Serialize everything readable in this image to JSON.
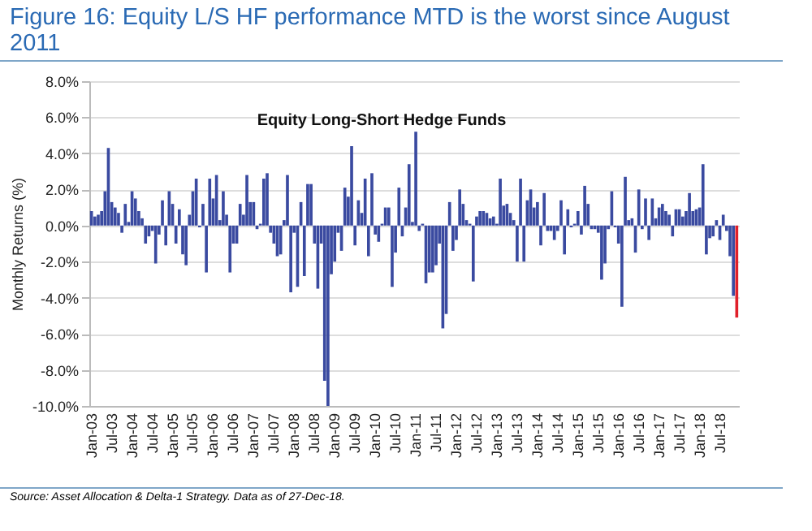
{
  "chart_data": {
    "type": "bar",
    "title": "Figure 16: Equity L/S HF performance MTD is the worst since August 2011",
    "subtitle": "Equity Long-Short Hedge Funds",
    "ylabel": "Monthly Returns (%)",
    "annotations": [
      "Source: Asset Allocation & Delta-1 Strategy. Data as of 27-Dec-18."
    ],
    "categories": [
      "Jan-03",
      null,
      null,
      null,
      null,
      null,
      "Jul-03",
      null,
      null,
      null,
      null,
      null,
      "Jan-04",
      null,
      null,
      null,
      null,
      null,
      "Jul-04",
      null,
      null,
      null,
      null,
      null,
      "Jan-05",
      null,
      null,
      null,
      null,
      null,
      "Jul-05",
      null,
      null,
      null,
      null,
      null,
      "Jan-06",
      null,
      null,
      null,
      null,
      null,
      "Jul-06",
      null,
      null,
      null,
      null,
      null,
      "Jan-07",
      null,
      null,
      null,
      null,
      null,
      "Jul-07",
      null,
      null,
      null,
      null,
      null,
      "Jan-08",
      null,
      null,
      null,
      null,
      null,
      "Jul-08",
      null,
      null,
      null,
      null,
      null,
      "Jan-09",
      null,
      null,
      null,
      null,
      null,
      "Jul-09",
      null,
      null,
      null,
      null,
      null,
      "Jan-10",
      null,
      null,
      null,
      null,
      null,
      "Jul-10",
      null,
      null,
      null,
      null,
      null,
      "Jan-11",
      null,
      null,
      null,
      null,
      null,
      "Jul-11",
      null,
      null,
      null,
      null,
      null,
      "Jan-12",
      null,
      null,
      null,
      null,
      null,
      "Jul-12",
      null,
      null,
      null,
      null,
      null,
      "Jan-13",
      null,
      null,
      null,
      null,
      null,
      "Jul-13",
      null,
      null,
      null,
      null,
      null,
      "Jan-14",
      null,
      null,
      null,
      null,
      null,
      "Jul-14",
      null,
      null,
      null,
      null,
      null,
      "Jan-15",
      null,
      null,
      null,
      null,
      null,
      "Jul-15",
      null,
      null,
      null,
      null,
      null,
      "Jan-16",
      null,
      null,
      null,
      null,
      null,
      "Jul-16",
      null,
      null,
      null,
      null,
      null,
      "Jan-17",
      null,
      null,
      null,
      null,
      null,
      "Jul-17",
      null,
      null,
      null,
      null,
      null,
      "Jan-18",
      null,
      null,
      null,
      null,
      null,
      "Jul-18",
      null,
      null,
      null,
      null,
      null
    ],
    "values": [
      0.8,
      0.5,
      0.6,
      0.8,
      1.9,
      4.3,
      1.3,
      1.0,
      0.7,
      -0.4,
      1.2,
      0.2,
      1.9,
      1.5,
      0.8,
      0.4,
      -1.0,
      -0.6,
      -0.3,
      -2.1,
      -0.5,
      1.4,
      -1.1,
      1.9,
      1.2,
      -1.0,
      0.9,
      -1.6,
      -2.2,
      0.6,
      1.9,
      2.6,
      -0.1,
      1.2,
      -2.6,
      2.6,
      1.5,
      2.8,
      0.3,
      1.9,
      0.6,
      -2.6,
      -1.0,
      -1.0,
      1.2,
      0.6,
      2.8,
      1.3,
      1.3,
      -0.2,
      0.1,
      2.6,
      2.9,
      -0.4,
      -1.0,
      -1.7,
      -1.6,
      0.3,
      2.8,
      -3.7,
      -0.4,
      -3.4,
      1.3,
      -2.8,
      2.3,
      2.3,
      -1.0,
      -3.5,
      -1.0,
      -8.6,
      -10.0,
      -2.7,
      -2.0,
      -0.4,
      -1.4,
      2.1,
      1.6,
      4.4,
      -1.1,
      1.4,
      0.7,
      2.6,
      -1.7,
      2.9,
      -0.5,
      -0.9,
      0.1,
      1.0,
      1.0,
      -3.4,
      -1.5,
      2.1,
      -0.6,
      1.0,
      3.4,
      0.2,
      5.2,
      -0.3,
      0.1,
      -3.2,
      -2.6,
      -2.6,
      -2.2,
      -1.0,
      -5.7,
      -4.9,
      1.3,
      -1.4,
      -0.8,
      2.0,
      1.2,
      0.3,
      0.1,
      -3.1,
      0.5,
      0.8,
      0.8,
      0.7,
      0.4,
      0.5,
      0.1,
      2.6,
      1.1,
      1.2,
      0.7,
      0.3,
      -2.0,
      2.6,
      -2.0,
      1.4,
      2.0,
      1.0,
      1.3,
      -1.1,
      1.8,
      -0.3,
      -0.3,
      -0.8,
      -0.3,
      1.4,
      -1.6,
      0.9,
      -0.1,
      0.1,
      0.8,
      -0.5,
      2.2,
      1.2,
      -0.2,
      -0.2,
      -0.4,
      -3.0,
      -2.1,
      -0.2,
      1.9,
      -0.1,
      -1.0,
      -4.5,
      2.7,
      0.3,
      0.4,
      -1.5,
      2.0,
      -0.2,
      1.5,
      -0.8,
      1.5,
      0.4,
      1.0,
      1.2,
      0.8,
      0.6,
      -0.6,
      0.9,
      0.9,
      0.5,
      0.8,
      1.8,
      0.8,
      0.9,
      1.0,
      3.4,
      -1.6,
      -0.7,
      -0.6,
      0.3,
      -0.8,
      0.6,
      -0.3,
      -1.7,
      -3.9,
      -5.1
    ],
    "colors": [
      "#3a4aa0",
      "#3a4aa0",
      "#3a4aa0",
      "#3a4aa0",
      "#3a4aa0",
      "#3a4aa0",
      "#3a4aa0",
      "#3a4aa0",
      "#3a4aa0",
      "#3a4aa0",
      "#3a4aa0",
      "#3a4aa0",
      "#3a4aa0",
      "#3a4aa0",
      "#3a4aa0",
      "#3a4aa0",
      "#3a4aa0",
      "#3a4aa0",
      "#3a4aa0",
      "#3a4aa0",
      "#3a4aa0",
      "#3a4aa0",
      "#3a4aa0",
      "#3a4aa0",
      "#3a4aa0",
      "#3a4aa0",
      "#3a4aa0",
      "#3a4aa0",
      "#3a4aa0",
      "#3a4aa0",
      "#3a4aa0",
      "#3a4aa0",
      "#3a4aa0",
      "#3a4aa0",
      "#3a4aa0",
      "#3a4aa0",
      "#3a4aa0",
      "#3a4aa0",
      "#3a4aa0",
      "#3a4aa0",
      "#3a4aa0",
      "#3a4aa0",
      "#3a4aa0",
      "#3a4aa0",
      "#3a4aa0",
      "#3a4aa0",
      "#3a4aa0",
      "#3a4aa0",
      "#3a4aa0",
      "#3a4aa0",
      "#3a4aa0",
      "#3a4aa0",
      "#3a4aa0",
      "#3a4aa0",
      "#3a4aa0",
      "#3a4aa0",
      "#3a4aa0",
      "#3a4aa0",
      "#3a4aa0",
      "#3a4aa0",
      "#3a4aa0",
      "#3a4aa0",
      "#3a4aa0",
      "#3a4aa0",
      "#3a4aa0",
      "#3a4aa0",
      "#3a4aa0",
      "#3a4aa0",
      "#3a4aa0",
      "#3a4aa0",
      "#3a4aa0",
      "#3a4aa0",
      "#3a4aa0",
      "#3a4aa0",
      "#3a4aa0",
      "#3a4aa0",
      "#3a4aa0",
      "#3a4aa0",
      "#3a4aa0",
      "#3a4aa0",
      "#3a4aa0",
      "#3a4aa0",
      "#3a4aa0",
      "#3a4aa0",
      "#3a4aa0",
      "#3a4aa0",
      "#3a4aa0",
      "#3a4aa0",
      "#3a4aa0",
      "#3a4aa0",
      "#3a4aa0",
      "#3a4aa0",
      "#3a4aa0",
      "#3a4aa0",
      "#3a4aa0",
      "#3a4aa0",
      "#3a4aa0",
      "#3a4aa0",
      "#3a4aa0",
      "#3a4aa0",
      "#3a4aa0",
      "#3a4aa0",
      "#3a4aa0",
      "#3a4aa0",
      "#3a4aa0",
      "#3a4aa0",
      "#3a4aa0",
      "#3a4aa0",
      "#3a4aa0",
      "#3a4aa0",
      "#3a4aa0",
      "#3a4aa0",
      "#3a4aa0",
      "#3a4aa0",
      "#3a4aa0",
      "#3a4aa0",
      "#3a4aa0",
      "#3a4aa0",
      "#3a4aa0",
      "#3a4aa0",
      "#3a4aa0",
      "#3a4aa0",
      "#3a4aa0",
      "#3a4aa0",
      "#3a4aa0",
      "#3a4aa0",
      "#3a4aa0",
      "#3a4aa0",
      "#3a4aa0",
      "#3a4aa0",
      "#3a4aa0",
      "#3a4aa0",
      "#3a4aa0",
      "#3a4aa0",
      "#3a4aa0",
      "#3a4aa0",
      "#3a4aa0",
      "#3a4aa0",
      "#3a4aa0",
      "#3a4aa0",
      "#3a4aa0",
      "#3a4aa0",
      "#3a4aa0",
      "#3a4aa0",
      "#3a4aa0",
      "#3a4aa0",
      "#3a4aa0",
      "#3a4aa0",
      "#3a4aa0",
      "#3a4aa0",
      "#3a4aa0",
      "#3a4aa0",
      "#3a4aa0",
      "#3a4aa0",
      "#3a4aa0",
      "#3a4aa0",
      "#3a4aa0",
      "#3a4aa0",
      "#3a4aa0",
      "#3a4aa0",
      "#3a4aa0",
      "#3a4aa0",
      "#3a4aa0",
      "#3a4aa0",
      "#3a4aa0",
      "#3a4aa0",
      "#3a4aa0",
      "#3a4aa0",
      "#3a4aa0",
      "#3a4aa0",
      "#3a4aa0",
      "#3a4aa0",
      "#3a4aa0",
      "#3a4aa0",
      "#3a4aa0",
      "#3a4aa0",
      "#3a4aa0",
      "#3a4aa0",
      "#3a4aa0",
      "#3a4aa0",
      "#3a4aa0",
      "#3a4aa0",
      "#3a4aa0",
      "#3a4aa0",
      "#3a4aa0",
      "#3a4aa0",
      "#3a4aa0",
      "#3a4aa0",
      "#3a4aa0",
      "#3a4aa0",
      "#3a4aa0",
      "#e0202a"
    ],
    "ylim": [
      -10,
      8
    ],
    "yticks": [
      {
        "value": -10,
        "label": "-10.0%"
      },
      {
        "value": -8,
        "label": "-8.0%"
      },
      {
        "value": -6,
        "label": "-6.0%"
      },
      {
        "value": -4,
        "label": "-4.0%"
      },
      {
        "value": -2,
        "label": "-2.0%"
      },
      {
        "value": 0,
        "label": "0.0%"
      },
      {
        "value": 2,
        "label": "2.0%"
      },
      {
        "value": 4,
        "label": "4.0%"
      },
      {
        "value": 6,
        "label": "6.0%"
      },
      {
        "value": 8,
        "label": "8.0%"
      }
    ],
    "grid": "y"
  }
}
